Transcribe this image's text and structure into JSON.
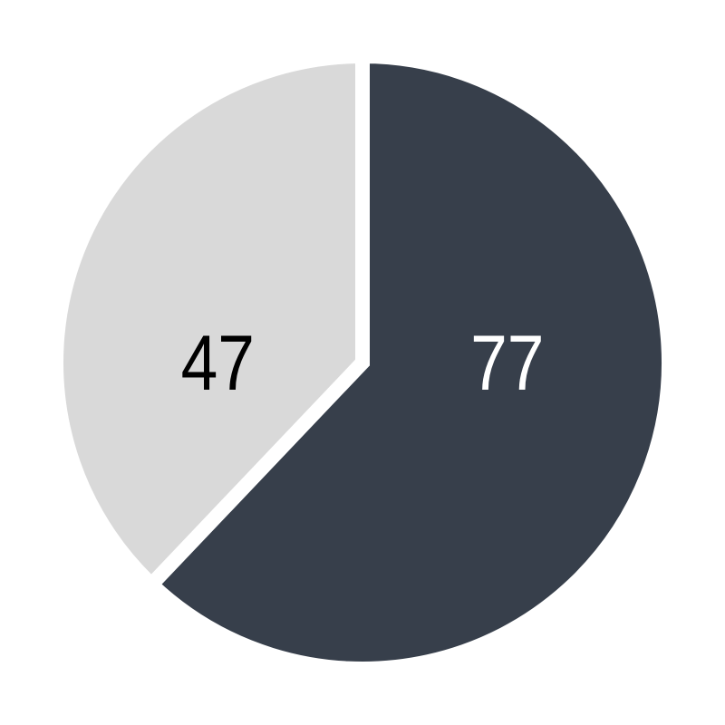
{
  "chart_data": {
    "type": "pie",
    "title": "",
    "start": "top",
    "direction": "clockwise",
    "slices": [
      {
        "value": 77,
        "label": "77",
        "color": "#373f4b",
        "label_color": "#ffffff"
      },
      {
        "value": 47,
        "label": "47",
        "color": "#d9d9d9",
        "label_color": "#000000"
      }
    ],
    "legend": "none"
  }
}
